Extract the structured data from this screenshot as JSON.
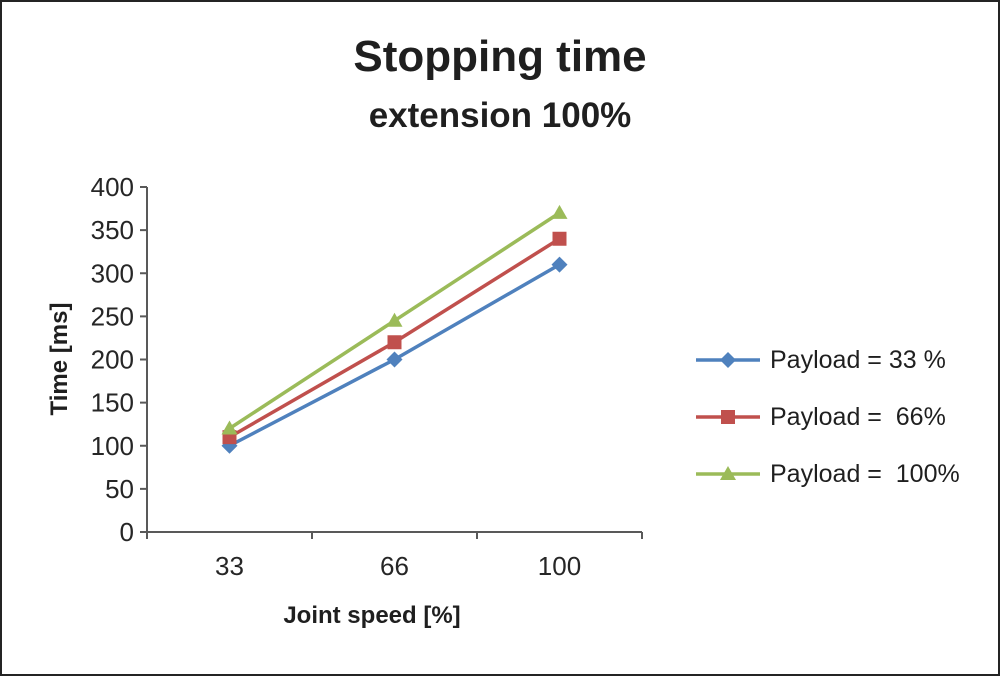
{
  "chart_data": {
    "type": "line",
    "title": "Stopping time",
    "subtitle": "extension 100%",
    "xlabel": "Joint speed [%]",
    "ylabel": "Time [ms]",
    "categories": [
      "33",
      "66",
      "100"
    ],
    "series": [
      {
        "name": "Payload = 33 %",
        "marker": "diamond",
        "color": "#4F81BD",
        "values": [
          100,
          200,
          310
        ]
      },
      {
        "name": "Payload =  66%",
        "marker": "square",
        "color": "#C0504D",
        "values": [
          110,
          220,
          340
        ]
      },
      {
        "name": "Payload =  100%",
        "marker": "triangle",
        "color": "#9BBB59",
        "values": [
          120,
          245,
          370
        ]
      }
    ],
    "ylim": [
      0,
      400
    ],
    "y_ticks": [
      0,
      50,
      100,
      150,
      200,
      250,
      300,
      350,
      400
    ],
    "grid": false,
    "legend_position": "right",
    "axis_color": "#595959",
    "tick_label_color": "#262626"
  }
}
